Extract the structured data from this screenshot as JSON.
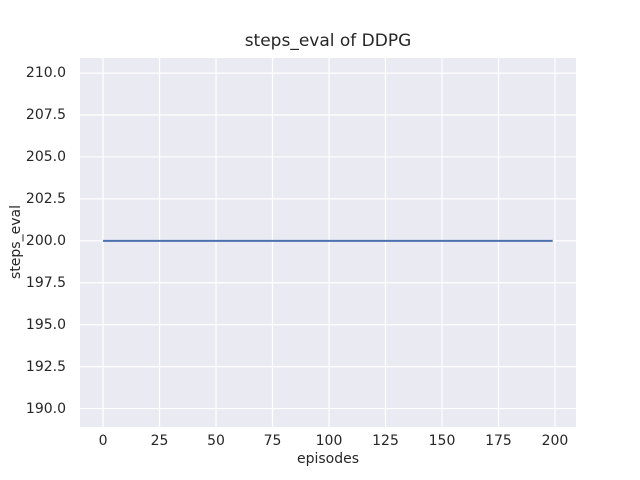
{
  "chart_data": {
    "type": "line",
    "title": "steps_eval of DDPG",
    "xlabel": "episodes",
    "ylabel": "steps_eval",
    "x_ticks": [
      {
        "value": 0,
        "label": "0"
      },
      {
        "value": 25,
        "label": "25"
      },
      {
        "value": 50,
        "label": "50"
      },
      {
        "value": 75,
        "label": "75"
      },
      {
        "value": 100,
        "label": "100"
      },
      {
        "value": 125,
        "label": "125"
      },
      {
        "value": 150,
        "label": "150"
      },
      {
        "value": 175,
        "label": "175"
      },
      {
        "value": 200,
        "label": "200"
      }
    ],
    "y_ticks": [
      {
        "value": 190.0,
        "label": "190.0"
      },
      {
        "value": 192.5,
        "label": "192.5"
      },
      {
        "value": 195.0,
        "label": "195.0"
      },
      {
        "value": 197.5,
        "label": "197.5"
      },
      {
        "value": 200.0,
        "label": "200.0"
      },
      {
        "value": 202.5,
        "label": "202.5"
      },
      {
        "value": 205.0,
        "label": "205.0"
      },
      {
        "value": 207.5,
        "label": "207.5"
      },
      {
        "value": 210.0,
        "label": "210.0"
      }
    ],
    "xlim": [
      -10.2,
      209.3
    ],
    "ylim": [
      188.9,
      210.9
    ],
    "grid": true,
    "legend_position": "none",
    "series": [
      {
        "name": "DDPG",
        "color": "#4c72b0",
        "x": [
          0,
          199
        ],
        "y": [
          200,
          200
        ]
      }
    ],
    "colors": {
      "figure_background": "#ffffff",
      "axes_background": "#eaeaf2",
      "grid": "#ffffff",
      "text": "#262626",
      "line": "#4c72b0"
    }
  }
}
